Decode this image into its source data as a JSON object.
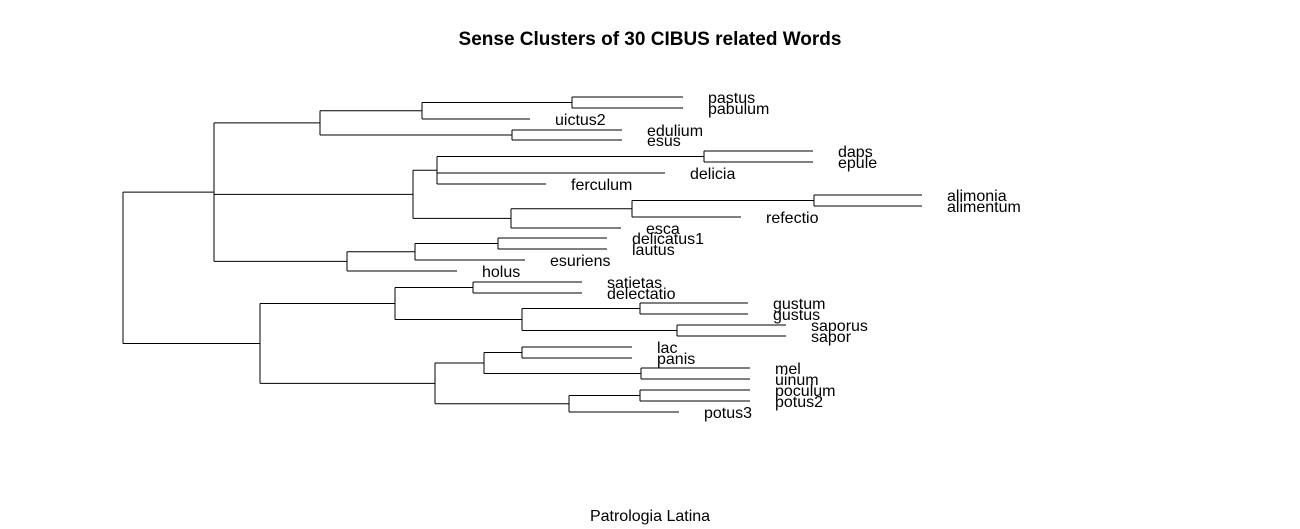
{
  "title": "Sense Clusters of 30 CIBUS related Words",
  "subtitle": "Patrologia Latina",
  "dendrogram": {
    "leaves": [
      "pastus",
      "pabulum",
      "uictus2",
      "edulium",
      "esus",
      "daps",
      "epule",
      "delicia",
      "ferculum",
      "alimonia",
      "alimentum",
      "refectio",
      "esca",
      "delicatus1",
      "lautus",
      "esuriens",
      "holus",
      "satietas",
      "delectatio",
      "gustum",
      "gustus",
      "saporus",
      "sapor",
      "lac",
      "panis",
      "mel",
      "uinum",
      "poculum",
      "potus2",
      "potus3"
    ],
    "tree": [
      "root",
      [
        "n_upper",
        [
          "n_u1",
          [
            "n_a",
            [
              "n_a1",
              "pastus",
              "pabulum"
            ],
            "uictus2"
          ],
          [
            "n_b",
            "edulium",
            "esus"
          ]
        ],
        [
          "n_u2",
          [
            "n_c",
            [
              "n_c1",
              "daps",
              "epule"
            ],
            "delicia",
            "ferculum"
          ],
          [
            "n_d",
            [
              "n_d1",
              [
                "n_d2",
                "alimonia",
                "alimentum"
              ],
              "refectio"
            ],
            "esca"
          ]
        ],
        [
          "n_u3",
          [
            "n_e",
            [
              "n_e1",
              "delicatus1",
              "lautus"
            ],
            "esuriens"
          ],
          "holus"
        ]
      ],
      [
        "n_lower",
        [
          "n_l1",
          [
            "n_f",
            "satietas",
            "delectatio"
          ],
          [
            "n_g",
            [
              "n_g1",
              "gustum",
              "gustus"
            ],
            [
              "n_g2",
              "saporus",
              "sapor"
            ]
          ]
        ],
        [
          "n_l2",
          [
            "n_h",
            [
              "n_h1",
              "lac",
              "panis"
            ],
            [
              "n_h2",
              "mel",
              "uinum"
            ]
          ],
          [
            "n_i",
            [
              "n_i1",
              "poculum",
              "potus2"
            ],
            "potus3"
          ]
        ]
      ]
    ]
  }
}
